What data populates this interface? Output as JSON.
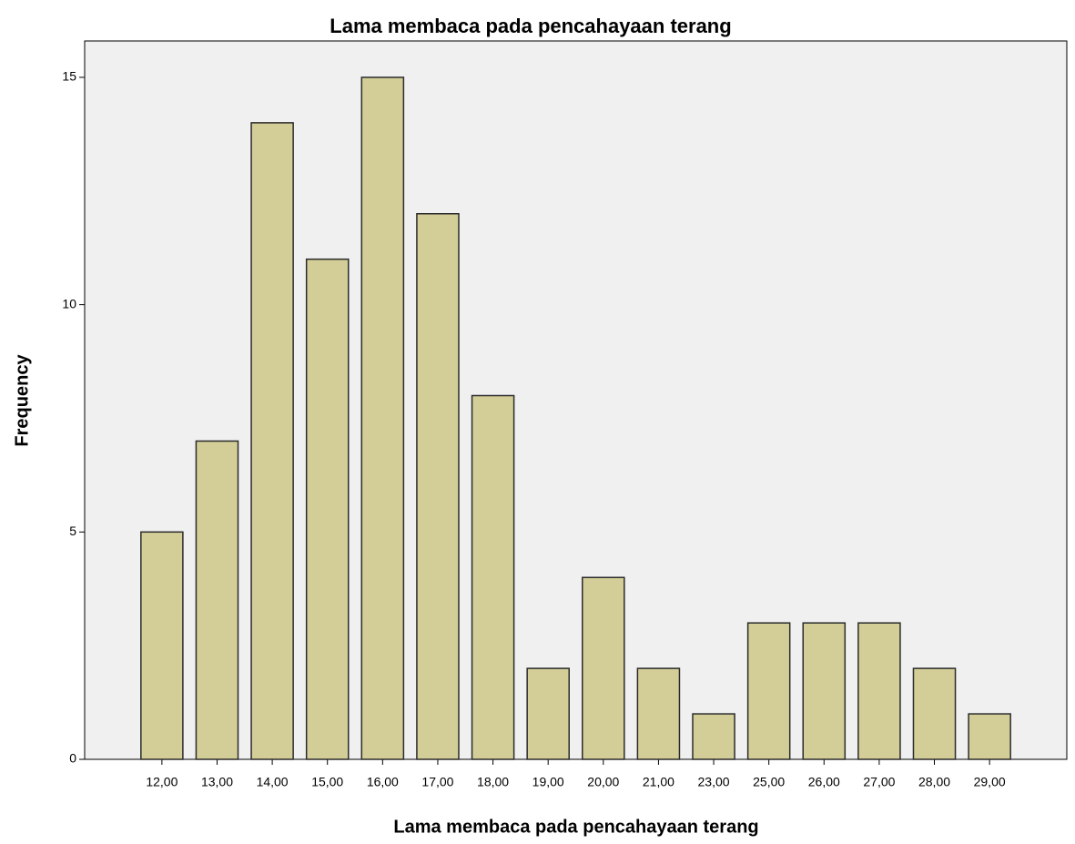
{
  "chart_data": {
    "type": "bar",
    "title": "Lama membaca pada pencahayaan terang",
    "x_label": "Lama membaca pada pencahayaan terang",
    "y_label": "Frequency",
    "categories": [
      "12,00",
      "13,00",
      "14,00",
      "15,00",
      "16,00",
      "17,00",
      "18,00",
      "19,00",
      "20,00",
      "21,00",
      "23,00",
      "25,00",
      "26,00",
      "27,00",
      "28,00",
      "29,00"
    ],
    "values": [
      5,
      7,
      14,
      11,
      15,
      12,
      8,
      2,
      4,
      2,
      1,
      3,
      3,
      3,
      2,
      1
    ],
    "color": "#d3ce98",
    "ylim": [
      0,
      15.8
    ],
    "yticks": [
      0,
      5,
      10,
      15
    ],
    "grid": false
  }
}
